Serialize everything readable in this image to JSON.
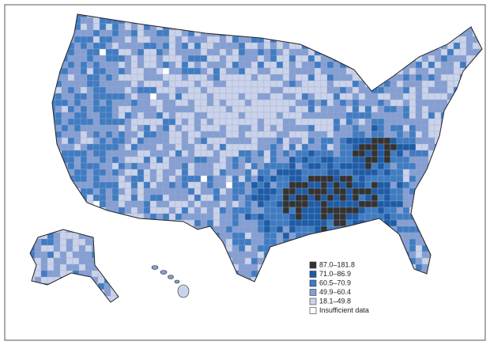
{
  "legend": {
    "items": [
      {
        "label": "87.0–181.8",
        "color": "#333333"
      },
      {
        "label": "71.0–86.9",
        "color": "#1c5ca8"
      },
      {
        "label": "60.5–70.9",
        "color": "#3e7cc4"
      },
      {
        "label": "49.9–60.4",
        "color": "#849fd4"
      },
      {
        "label": "18.1–49.8",
        "color": "#c9d3ec"
      },
      {
        "label": "Insufficient data",
        "color": "#ffffff"
      }
    ]
  }
}
